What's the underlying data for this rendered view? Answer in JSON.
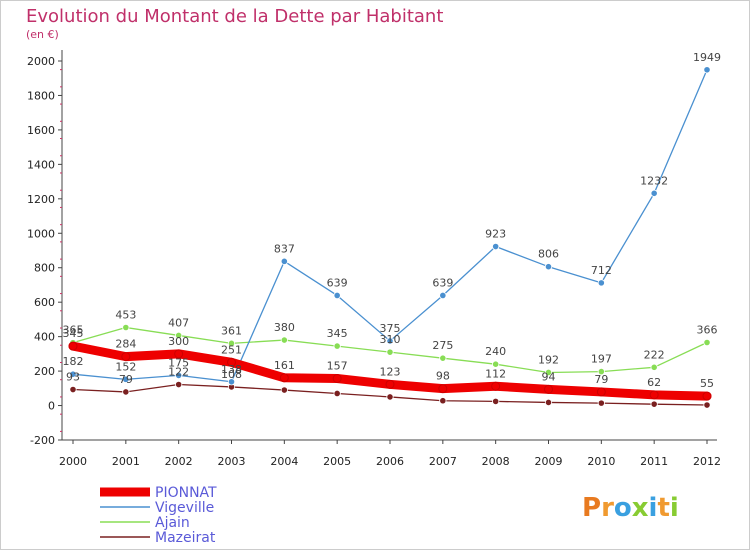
{
  "chart_data": {
    "type": "line",
    "title": "Evolution du Montant de la Dette par Habitant",
    "subtitle": "(en €)",
    "x": [
      "2000",
      "2001",
      "2002",
      "2003",
      "2004",
      "2005",
      "2006",
      "2007",
      "2008",
      "2009",
      "2010",
      "2011",
      "2012"
    ],
    "ylim": [
      -200,
      2000
    ],
    "yticks": [
      -200,
      0,
      200,
      400,
      600,
      800,
      1000,
      1200,
      1400,
      1600,
      1800,
      2000
    ],
    "grid": false,
    "legend_position": "bottom-left",
    "series": [
      {
        "name": "PIONNAT",
        "color": "#ee0000",
        "values": [
          345,
          284,
          300,
          251,
          161,
          157,
          123,
          98,
          112,
          94,
          79,
          62,
          55
        ],
        "labels": [
          "345",
          "284",
          "300",
          "251",
          "161",
          "157",
          "123",
          "98",
          "112",
          "94",
          "79",
          "62",
          "55"
        ]
      },
      {
        "name": "Vigeville",
        "color": "#4a90d0",
        "values": [
          182,
          152,
          175,
          138,
          837,
          639,
          375,
          639,
          923,
          806,
          712,
          1232,
          1949
        ],
        "labels": [
          "182",
          "152",
          "175",
          "138",
          "837",
          "639",
          "375",
          "639",
          "923",
          "806",
          "712",
          "1232",
          "1949"
        ]
      },
      {
        "name": "Ajain",
        "color": "#88dd55",
        "values": [
          365,
          453,
          407,
          361,
          380,
          345,
          310,
          275,
          240,
          192,
          197,
          222,
          366
        ],
        "labels": [
          "365",
          "453",
          "407",
          "361",
          "380",
          "345",
          "310",
          "275",
          "240",
          "192",
          "197",
          "222",
          "366"
        ]
      },
      {
        "name": "Mazeirat",
        "color": "#7a2020",
        "values": [
          93,
          79,
          122,
          108,
          90,
          70,
          50,
          28,
          24,
          18,
          14,
          8,
          3
        ],
        "labels": [
          "93",
          "79",
          "122",
          "108",
          "",
          "",
          "",
          "",
          "",
          "",
          "",
          "",
          ""
        ]
      }
    ]
  },
  "logo": {
    "text": "Proxiti"
  }
}
